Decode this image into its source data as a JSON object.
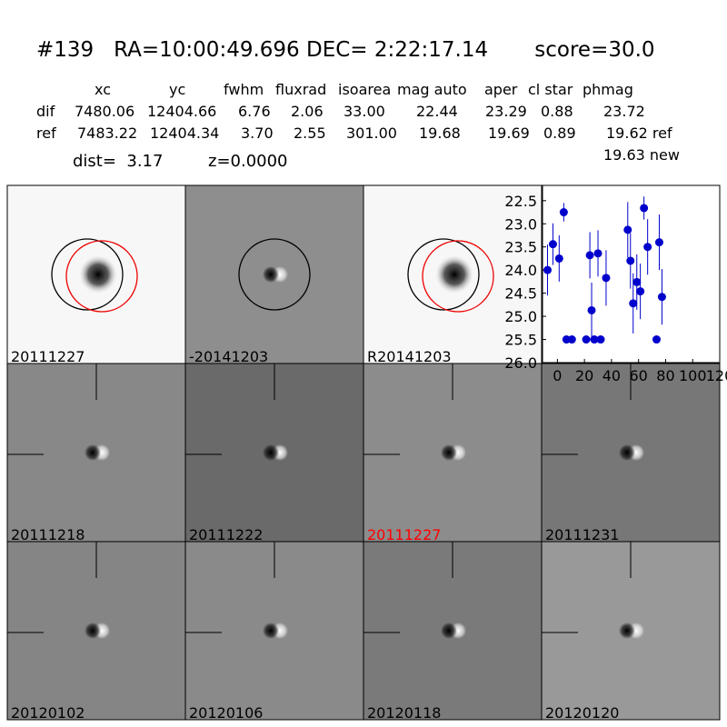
{
  "header": {
    "title": "#139   RA=10:00:49.696 DEC= 2:22:17.14       score=30.0"
  },
  "table": {
    "columns": [
      "xc",
      "yc",
      "fwhm",
      "fluxrad",
      "isoarea",
      "mag auto",
      "aper",
      "cl star",
      "phmag"
    ],
    "rows": [
      [
        "dif",
        "7480.06",
        "12404.66",
        "6.76",
        "2.06",
        "33.00",
        "22.44",
        "23.29",
        "0.88",
        "23.72"
      ],
      [
        "ref",
        "7483.22",
        "12404.34",
        "3.70",
        "2.55",
        "301.00",
        "19.68",
        "19.69",
        "0.89",
        "19.62 ref"
      ]
    ],
    "extra": [
      "dist=  3.17",
      "z=0.0000",
      "19.63 new"
    ]
  },
  "stamps": [
    {
      "label": "20111227",
      "style": "ref"
    },
    {
      "label": "-20141203",
      "style": "diff"
    },
    {
      "label": "R20141203",
      "style": "ref"
    },
    {
      "label": "20111218",
      "style": "epoch"
    },
    {
      "label": "20111222",
      "style": "epoch"
    },
    {
      "label": "20111227",
      "style": "epoch",
      "color": "#ff0000"
    },
    {
      "label": "20111231",
      "style": "epoch"
    },
    {
      "label": "20120102",
      "style": "epoch"
    },
    {
      "label": "20120106",
      "style": "epoch"
    },
    {
      "label": "20120118",
      "style": "epoch"
    },
    {
      "label": "20120120",
      "style": "epoch"
    }
  ],
  "chart_data": {
    "type": "scatter",
    "x": [
      -7.3,
      -3.3,
      1.3,
      4.7,
      6.7,
      10.7,
      21.3,
      24,
      25.3,
      27.3,
      30,
      32,
      36,
      52,
      54,
      56,
      58.7,
      61.3,
      64,
      66.7,
      73.3,
      75.3,
      77.3
    ],
    "series": [
      {
        "color": "#0000cc",
        "values": [
          24.0,
          23.44,
          23.75,
          22.75,
          25.5,
          25.5,
          25.5,
          23.68,
          24.87,
          25.5,
          23.64,
          25.5,
          24.17,
          23.13,
          23.8,
          24.72,
          24.26,
          24.46,
          22.66,
          23.5,
          25.5,
          23.4,
          24.58
        ],
        "errors": [
          0.55,
          0.45,
          0.5,
          0.2,
          0.05,
          0.05,
          0.05,
          0.5,
          0.6,
          0.05,
          0.5,
          0.05,
          0.6,
          0.6,
          0.6,
          0.65,
          0.6,
          0.6,
          0.25,
          0.6,
          0.05,
          0.6,
          0.6
        ]
      }
    ],
    "xlim": [
      -11,
      120
    ],
    "xticks": [
      0,
      20,
      40,
      60,
      80,
      100,
      120
    ],
    "ylim": [
      26.0,
      22.17
    ],
    "yticks": [
      22.5,
      {
        "value": 23,
        "label": "23.0"
      },
      23.5,
      {
        "value": 24,
        "label": "24.0"
      },
      24.5,
      {
        "value": 25,
        "label": "25.0"
      },
      25.5,
      {
        "value": 26,
        "label": "26.0"
      }
    ]
  }
}
